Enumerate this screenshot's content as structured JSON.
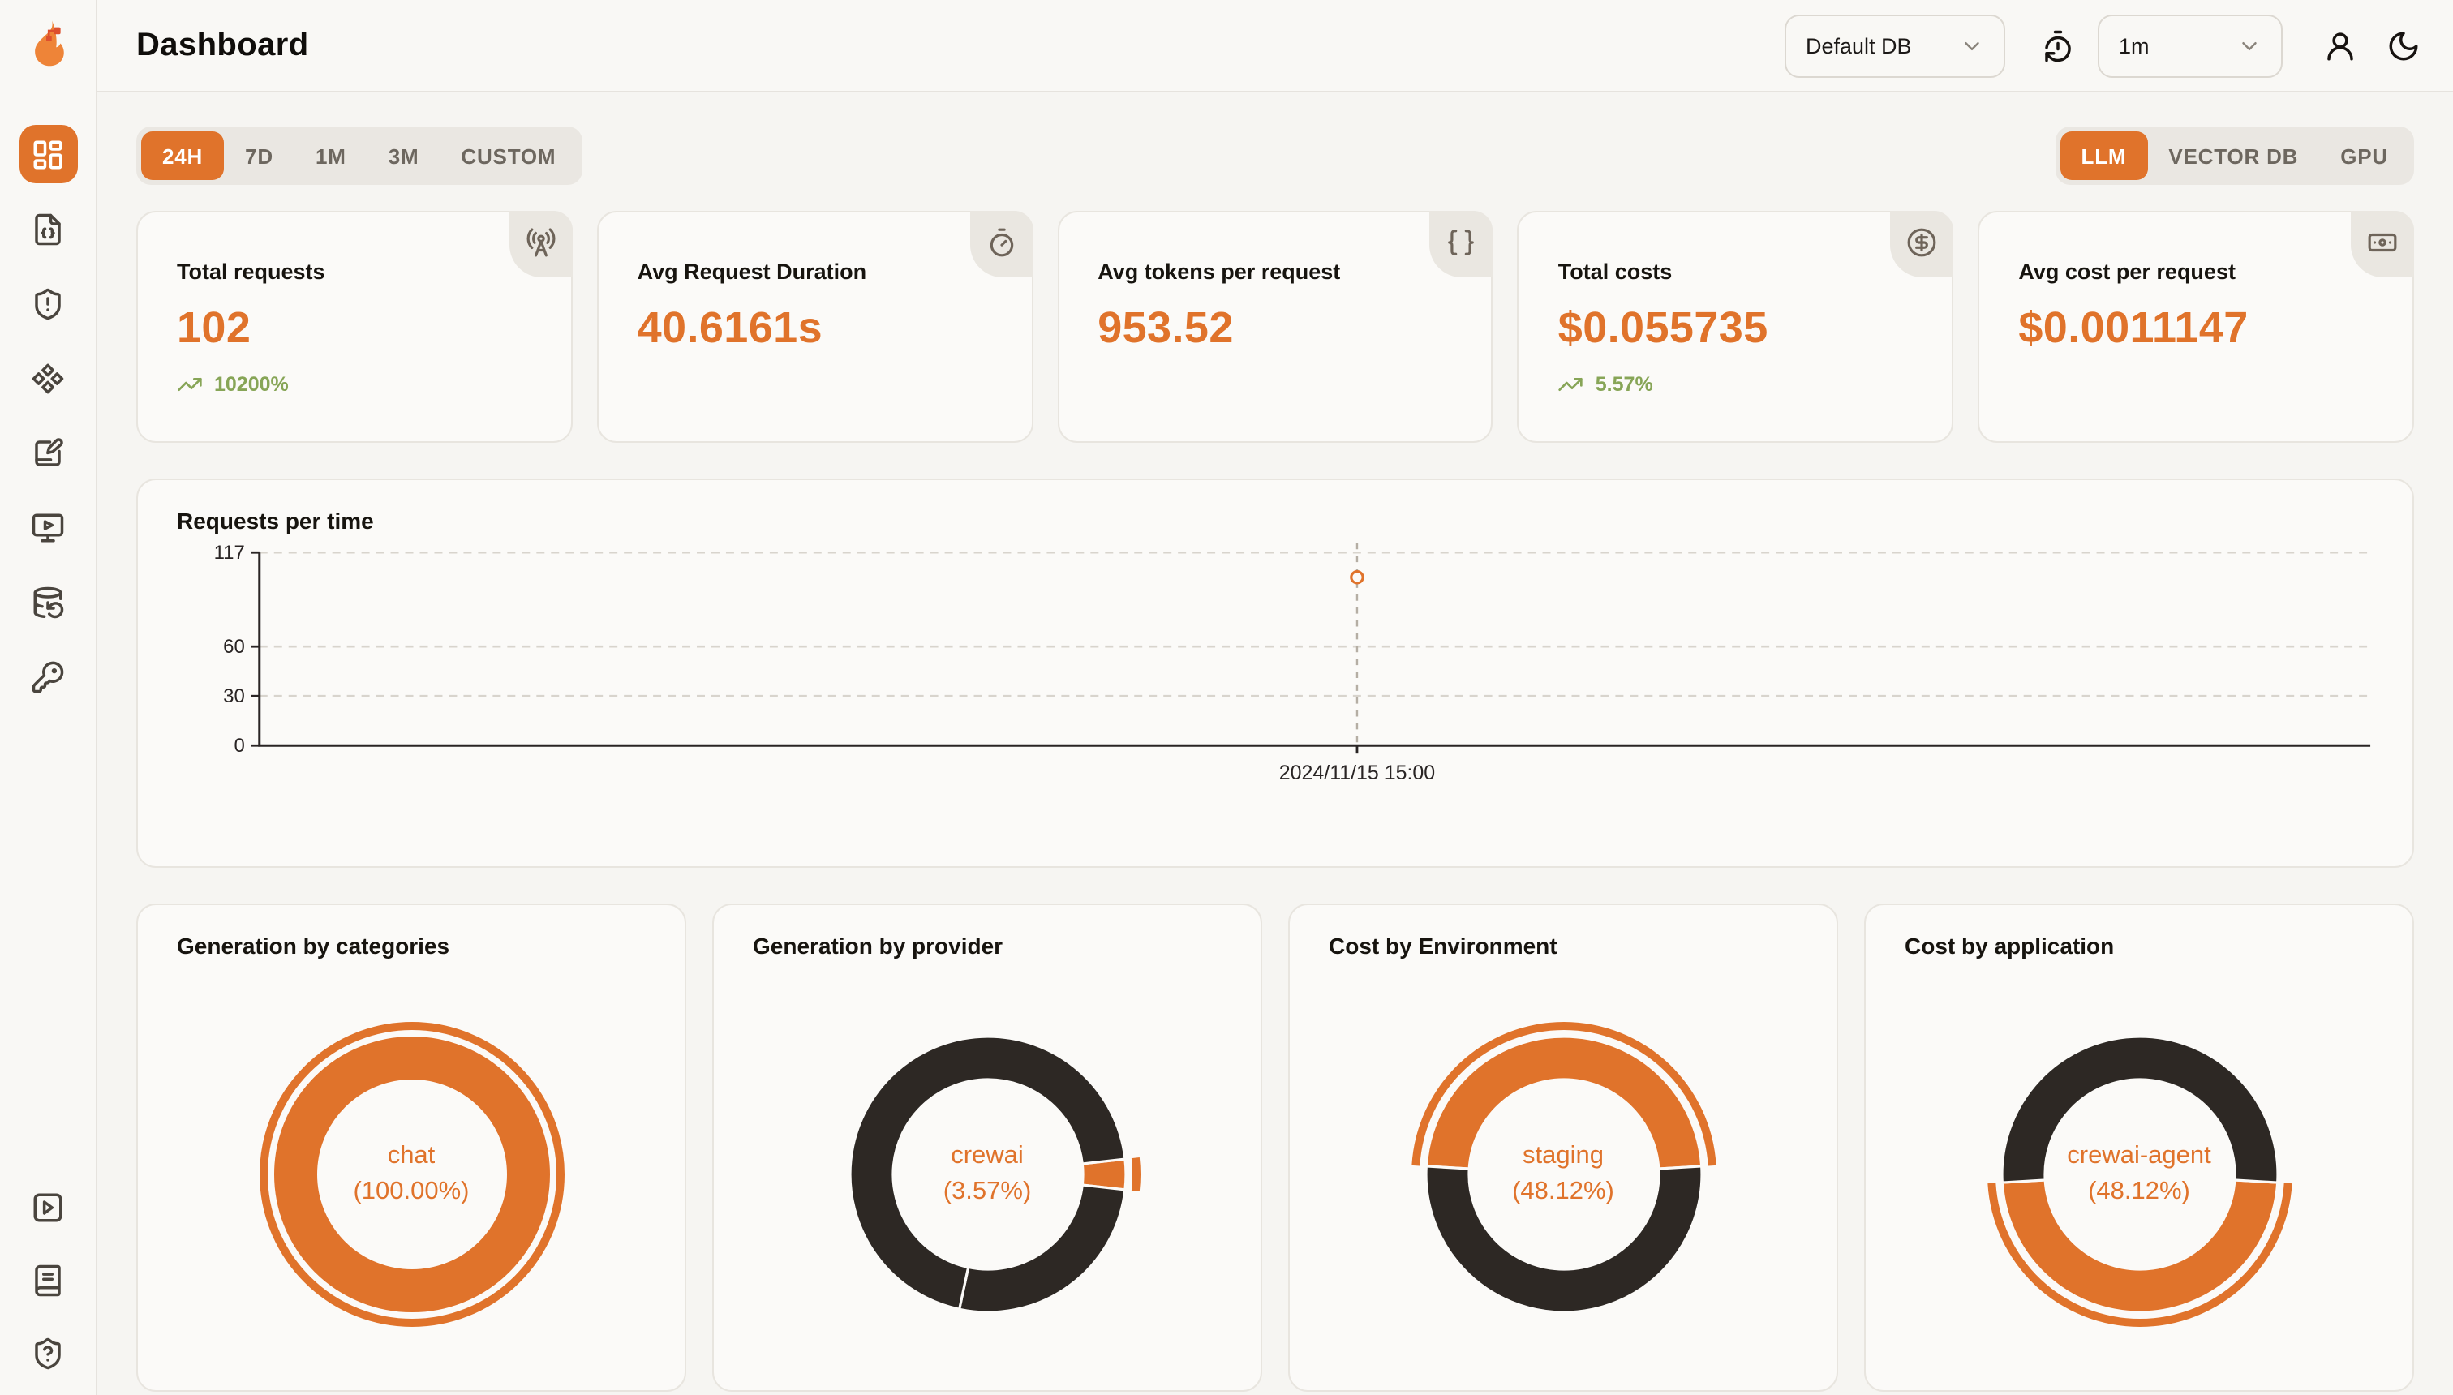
{
  "colors": {
    "accent": "#E0732B",
    "donut_dark": "#2D2824",
    "trend_green": "#87A557"
  },
  "brand": {
    "logo_icon": "flame-logo"
  },
  "header": {
    "title": "Dashboard",
    "database_select": {
      "value": "Default DB"
    },
    "refresh_icon": "timer-reset-icon",
    "interval_select": {
      "value": "1m"
    },
    "user_icon": "user-icon",
    "theme_icon": "moon-icon"
  },
  "sidebar": {
    "items": [
      {
        "icon": "layout-dashboard",
        "active": true
      },
      {
        "icon": "file-json",
        "active": false
      },
      {
        "icon": "shield-alert",
        "active": false
      },
      {
        "icon": "component",
        "active": false
      },
      {
        "icon": "notebook-pen",
        "active": false
      },
      {
        "icon": "monitor-play",
        "active": false
      },
      {
        "icon": "database-backup",
        "active": false
      },
      {
        "icon": "key-round",
        "active": false
      }
    ],
    "footer_items": [
      {
        "icon": "square-play"
      },
      {
        "icon": "book-text"
      },
      {
        "icon": "shield-question"
      }
    ]
  },
  "filters": {
    "time_ranges": [
      "24H",
      "7D",
      "1M",
      "3M",
      "CUSTOM"
    ],
    "active_time_range": "24H",
    "signals": [
      "LLM",
      "VECTOR DB",
      "GPU"
    ],
    "active_signal": "LLM"
  },
  "stat_cards": [
    {
      "label": "Total requests",
      "value": "102",
      "trend": "10200%",
      "icon": "radio-tower"
    },
    {
      "label": "Avg Request Duration",
      "value": "40.6161s",
      "icon": "timer"
    },
    {
      "label": "Avg tokens per request",
      "value": "953.52",
      "icon": "braces"
    },
    {
      "label": "Total costs",
      "value": "$0.055735",
      "trend": "5.57%",
      "icon": "circle-dollar-sign"
    },
    {
      "label": "Avg cost per request",
      "value": "$0.0011147",
      "icon": "banknote"
    }
  ],
  "chart_data": [
    {
      "type": "line",
      "title": "Requests per time",
      "xlabel": "",
      "ylabel": "",
      "ylim": [
        0,
        117
      ],
      "y_ticks": [
        0,
        30,
        60,
        117
      ],
      "grid": "dashed-horizontal",
      "legend": "none",
      "series": [
        {
          "name": "Requests",
          "points": [
            {
              "x": "2024/11/15 15:00",
              "y": 102,
              "x_fraction": 0.52
            }
          ]
        }
      ]
    },
    {
      "type": "pie",
      "title": "Generation by categories",
      "center_label": [
        "chat",
        "(100.00%)"
      ],
      "slices": [
        {
          "label": "chat",
          "pct": 100.0,
          "color": "accent",
          "from_deg": 0,
          "to_deg": 360,
          "selected": true
        }
      ]
    },
    {
      "type": "pie",
      "title": "Generation by provider",
      "center_label": [
        "crewai",
        "(3.57%)"
      ],
      "slices": [
        {
          "label": "crewai",
          "pct": 3.57,
          "color": "accent",
          "from_deg": 83.6,
          "to_deg": 96.4,
          "selected": true
        },
        {
          "label": "",
          "pct": 26.6,
          "color": "dark",
          "from_deg": 96.4,
          "to_deg": 192,
          "selected": false
        },
        {
          "label": "",
          "pct": 69.83,
          "color": "dark",
          "from_deg": 192,
          "to_deg": 443.6,
          "selected": false
        }
      ]
    },
    {
      "type": "pie",
      "title": "Cost by Environment",
      "center_label": [
        "staging",
        "(48.12%)"
      ],
      "slices": [
        {
          "label": "staging",
          "pct": 48.12,
          "color": "accent",
          "from_deg": 273.4,
          "to_deg": 446.6,
          "selected": true
        },
        {
          "label": "",
          "pct": 51.88,
          "color": "dark",
          "from_deg": 86.6,
          "to_deg": 273.4,
          "selected": false
        }
      ]
    },
    {
      "type": "pie",
      "title": "Cost by application",
      "center_label": [
        "crewai-agent",
        "(48.12%)"
      ],
      "slices": [
        {
          "label": "crewai-agent",
          "pct": 48.12,
          "color": "accent",
          "from_deg": 93.4,
          "to_deg": 266.6,
          "selected": true
        },
        {
          "label": "",
          "pct": 51.88,
          "color": "dark",
          "from_deg": 266.6,
          "to_deg": 453.4,
          "selected": false
        }
      ]
    }
  ]
}
